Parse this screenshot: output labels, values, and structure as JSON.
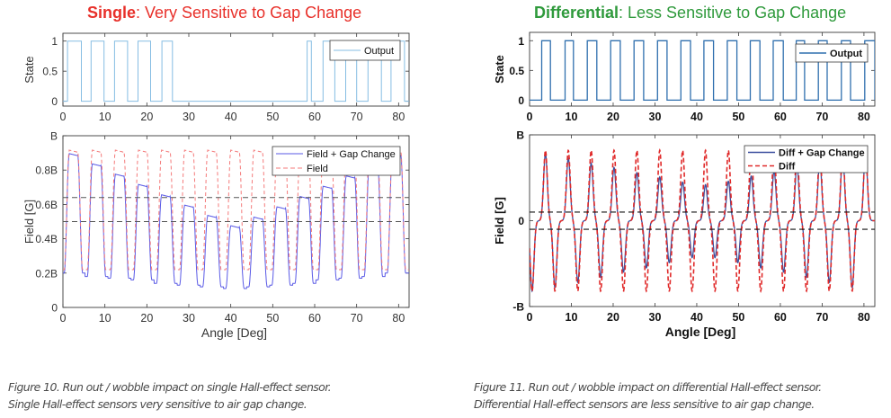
{
  "titles": {
    "left": {
      "bold": "Single",
      "rest": ": Very Sensitive to Gap Change",
      "color": "#e8302a"
    },
    "right": {
      "bold": "Differential",
      "rest": ": Less Sensitive to Gap Change",
      "color": "#2f9a3c"
    }
  },
  "captions": {
    "left": [
      "Figure 10. Run out / wobble impact on single Hall-effect sensor.",
      "Single Hall-effect sensors very sensitive to air gap change."
    ],
    "right": [
      "Figure 11. Run out / wobble impact on differential Hall-effect sensor.",
      "Differential Hall-effect sensors are less sensitive to air gap change."
    ]
  },
  "chart_data": [
    {
      "type": "line",
      "bold": false,
      "xlabel": "",
      "ylabel": "State",
      "xlim": [
        0,
        82.5
      ],
      "ylim": [
        -0.08,
        1.13
      ],
      "xticks": [
        0,
        10,
        20,
        30,
        40,
        50,
        60,
        70,
        80
      ],
      "yticks": [
        {
          "v": 0,
          "label": "0"
        },
        {
          "v": 0.5,
          "label": "0.5"
        },
        {
          "v": 1,
          "label": "1"
        }
      ],
      "grid": false,
      "legend": "top-right",
      "series": [
        {
          "name": "Output",
          "kind": "step",
          "color": "#86bde3",
          "dash": false,
          "high_intervals": [
            [
              1.1,
              4.4
            ],
            [
              6.7,
              9.8
            ],
            [
              12.3,
              15.4
            ],
            [
              17.9,
              20.9
            ],
            [
              23.6,
              26.1
            ],
            [
              58.2,
              59.2
            ],
            [
              62,
              64.8
            ],
            [
              67.4,
              70
            ],
            [
              72.7,
              75.9
            ],
            [
              78.2,
              81.4
            ]
          ]
        }
      ]
    },
    {
      "type": "line",
      "bold": false,
      "xlabel": "Angle [Deg]",
      "ylabel": "Field [G]",
      "xlim": [
        0,
        82.5
      ],
      "ylim": [
        0,
        1
      ],
      "xticks": [
        0,
        10,
        20,
        30,
        40,
        50,
        60,
        70,
        80
      ],
      "yticks": [
        {
          "v": 0,
          "label": "0"
        },
        {
          "v": 0.2,
          "label": "0.2B"
        },
        {
          "v": 0.4,
          "label": "0.4B"
        },
        {
          "v": 0.6,
          "label": "0.6B"
        },
        {
          "v": 0.8,
          "label": "0.8B"
        },
        {
          "v": 1,
          "label": "B"
        }
      ],
      "thresholds": [
        0.5,
        0.64
      ],
      "grid": false,
      "legend": "top-right",
      "series": [
        {
          "name": "Field + Gap Change",
          "kind": "tooth",
          "color": "#5a5ae6",
          "dash": false,
          "tooth_start": 2.5,
          "tooth_period": 5.5,
          "peaks": [
            0.89,
            0.83,
            0.77,
            0.71,
            0.65,
            0.59,
            0.53,
            0.47,
            0.52,
            0.58,
            0.64,
            0.7,
            0.76,
            0.83,
            0.89
          ],
          "troughs": [
            0.2,
            0.18,
            0.17,
            0.16,
            0.14,
            0.13,
            0.12,
            0.11,
            0.12,
            0.13,
            0.14,
            0.16,
            0.17,
            0.18,
            0.2
          ]
        },
        {
          "name": "Field",
          "kind": "tooth",
          "color": "#f47a7a",
          "dash": true,
          "tooth_start": 2.5,
          "tooth_period": 5.5,
          "peaks": [
            0.91,
            0.91,
            0.91,
            0.91,
            0.91,
            0.91,
            0.91,
            0.91,
            0.91,
            0.91,
            0.91,
            0.91,
            0.91,
            0.91,
            0.91
          ],
          "troughs": [
            0.22,
            0.22,
            0.22,
            0.22,
            0.22,
            0.22,
            0.22,
            0.22,
            0.22,
            0.22,
            0.22,
            0.22,
            0.22,
            0.22,
            0.22
          ]
        }
      ]
    },
    {
      "type": "line",
      "bold": true,
      "xlabel": "",
      "ylabel": "State",
      "xlim": [
        0,
        82.6
      ],
      "ylim": [
        -0.1,
        1.14
      ],
      "xticks": [
        0,
        10,
        20,
        30,
        40,
        50,
        60,
        70,
        80
      ],
      "yticks": [
        {
          "v": 0,
          "label": "0"
        },
        {
          "v": 0.5,
          "label": "0.5"
        },
        {
          "v": 1,
          "label": "1"
        }
      ],
      "grid": false,
      "legend": "top-right",
      "series": [
        {
          "name": "Output",
          "kind": "step",
          "color": "#2f6fae",
          "dash": false,
          "high_intervals": [
            [
              2.9,
              5.0
            ],
            [
              8.5,
              10.5
            ],
            [
              13.8,
              16.1
            ],
            [
              19.4,
              21.7
            ],
            [
              25,
              27.3
            ],
            [
              30.6,
              32.9
            ],
            [
              36.2,
              38.5
            ],
            [
              41.7,
              44
            ],
            [
              47.3,
              49.6
            ],
            [
              52.8,
              55.1
            ],
            [
              58.3,
              60.7
            ],
            [
              63.8,
              65.8
            ],
            [
              69.1,
              71.2
            ],
            [
              74.6,
              76.8
            ],
            [
              80.2,
              82.6
            ]
          ]
        }
      ]
    },
    {
      "type": "line",
      "bold": true,
      "xlabel": "Angle [Deg]",
      "ylabel": "Field [G]",
      "xlim": [
        0,
        82.6
      ],
      "ylim": [
        -1,
        1
      ],
      "xticks": [
        0,
        10,
        20,
        30,
        40,
        50,
        60,
        70,
        80
      ],
      "yticks": [
        {
          "v": -1,
          "label": "-B"
        },
        {
          "v": 0,
          "label": "0"
        },
        {
          "v": 1,
          "label": "B"
        }
      ],
      "thresholds": [
        -0.1,
        0.1
      ],
      "grid": false,
      "legend": "top-right",
      "series": [
        {
          "name": "Diff + Gap Change",
          "kind": "pulse",
          "color": "#3b4f9e",
          "dash": false,
          "pos_start": 3.8,
          "neg_start": 0.6,
          "period": 5.47,
          "pos": [
            0.78,
            0.73,
            0.67,
            0.62,
            0.56,
            0.51,
            0.45,
            0.42,
            0.46,
            0.52,
            0.58,
            0.64,
            0.7,
            0.76,
            0.8
          ],
          "neg": [
            -0.82,
            -0.78,
            -0.72,
            -0.66,
            -0.6,
            -0.55,
            -0.49,
            -0.43,
            -0.43,
            -0.49,
            -0.55,
            -0.6,
            -0.66,
            -0.72,
            -0.78
          ]
        },
        {
          "name": "Diff",
          "kind": "pulse",
          "color": "#e02a2a",
          "dash": true,
          "pos_start": 3.8,
          "neg_start": 0.6,
          "period": 5.47,
          "pos": [
            0.82,
            0.82,
            0.82,
            0.82,
            0.82,
            0.82,
            0.82,
            0.82,
            0.82,
            0.82,
            0.82,
            0.82,
            0.82,
            0.82,
            0.82
          ],
          "neg": [
            -0.82,
            -0.82,
            -0.82,
            -0.82,
            -0.82,
            -0.82,
            -0.82,
            -0.82,
            -0.82,
            -0.82,
            -0.82,
            -0.82,
            -0.82,
            -0.82,
            -0.82
          ]
        }
      ]
    }
  ]
}
